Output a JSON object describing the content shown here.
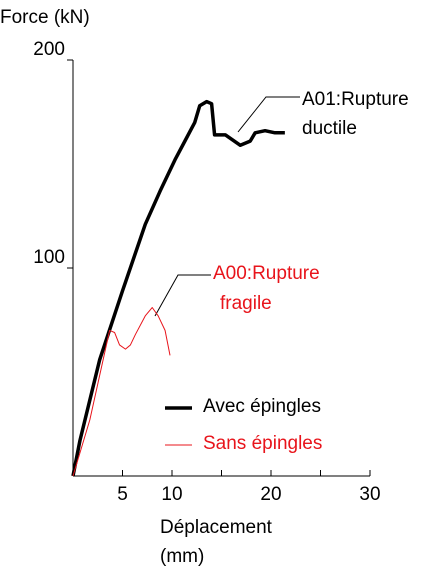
{
  "chart_data": {
    "type": "line",
    "ylabel": "Force (kN)",
    "xlabel": [
      "Déplacement",
      "(mm)"
    ],
    "xlim": [
      0,
      30
    ],
    "xticks": [
      5,
      10,
      20,
      30
    ],
    "xminorticks": [
      15,
      25
    ],
    "ylim": [
      0,
      200
    ],
    "yticks": [
      100,
      200
    ],
    "series": [
      {
        "name": "Avec épingles",
        "color": "#000000",
        "width": 3.5,
        "x": [
          0,
          0.7,
          2.7,
          5,
          7.3,
          8.8,
          10.3,
          11.3,
          12.3,
          12.8,
          13.5,
          14,
          14.3,
          15.4,
          16.9,
          17.9,
          18.4,
          19.4,
          20.4,
          21.4
        ],
        "values": [
          0,
          17,
          56,
          89,
          121,
          137,
          152,
          161,
          170,
          178,
          180,
          179,
          164,
          164,
          159,
          161,
          165,
          166,
          165,
          165
        ]
      },
      {
        "name": "Sans épingles",
        "color": "#e8141b",
        "width": 1,
        "x": [
          0,
          1.7,
          3.7,
          4.2,
          4.7,
          5.3,
          5.8,
          6.3,
          7.3,
          8,
          8.6,
          9.3,
          9.8
        ],
        "values": [
          0,
          27,
          70,
          69,
          63,
          61,
          63,
          68,
          77,
          81,
          77,
          70,
          58
        ]
      }
    ],
    "annotations": [
      {
        "lines": [
          "A01:Rupture",
          "ductile"
        ],
        "color": "#000000"
      },
      {
        "lines": [
          "A00:Rupture",
          "fragile"
        ],
        "color": "#e8141b"
      }
    ]
  }
}
